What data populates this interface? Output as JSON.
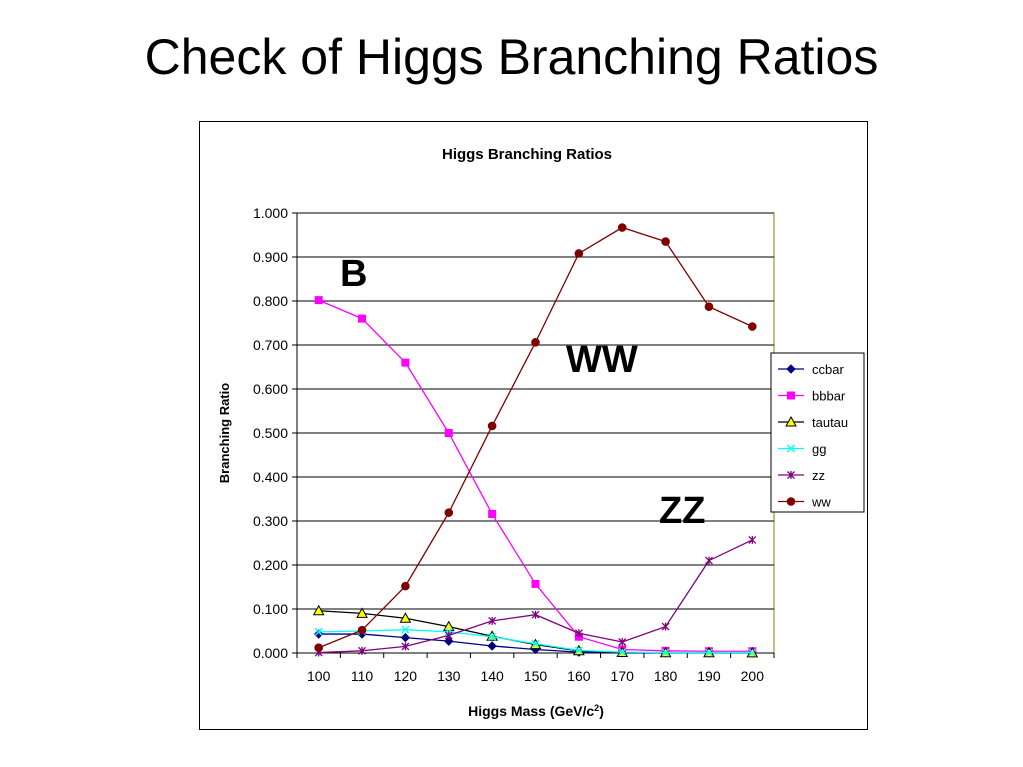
{
  "slide": {
    "title": "Check of Higgs Branching Ratios"
  },
  "chart_data": {
    "type": "line",
    "title": "Higgs Branching Ratios",
    "xlabel": "Higgs Mass (GeV/c",
    "xlabel_sup": "2",
    "xlabel_close": ")",
    "ylabel": "Branching Ratio",
    "x": [
      100,
      110,
      120,
      130,
      140,
      150,
      160,
      170,
      180,
      190,
      200
    ],
    "ylim": [
      0,
      1
    ],
    "yticks": [
      "0.000",
      "0.100",
      "0.200",
      "0.300",
      "0.400",
      "0.500",
      "0.600",
      "0.700",
      "0.800",
      "0.900",
      "1.000"
    ],
    "grid": true,
    "legend_position": "right",
    "series": [
      {
        "name": "ccbar",
        "color": "#000080",
        "marker": "diamond",
        "values": [
          0.043,
          0.043,
          0.035,
          0.027,
          0.016,
          0.008,
          0.002,
          0.0005,
          0.0003,
          0.0002,
          0.0002
        ]
      },
      {
        "name": "bbbar",
        "color": "#ff00ff",
        "marker": "square",
        "values": [
          0.802,
          0.76,
          0.66,
          0.5,
          0.316,
          0.157,
          0.037,
          0.008,
          0.005,
          0.004,
          0.004
        ]
      },
      {
        "name": "tautau",
        "color": "#000000",
        "marker": "triangle",
        "values": [
          0.096,
          0.09,
          0.079,
          0.06,
          0.038,
          0.019,
          0.005,
          0.001,
          0.0007,
          0.0005,
          0.0004
        ]
      },
      {
        "name": "gg",
        "color": "#00ffff",
        "marker": "x",
        "values": [
          0.048,
          0.05,
          0.053,
          0.048,
          0.037,
          0.021,
          0.006,
          0.002,
          0.001,
          0.001,
          0.001
        ]
      },
      {
        "name": "zz",
        "color": "#800080",
        "marker": "star",
        "values": [
          0.001,
          0.005,
          0.015,
          0.04,
          0.073,
          0.087,
          0.045,
          0.025,
          0.06,
          0.21,
          0.257
        ]
      },
      {
        "name": "ww",
        "color": "#800000",
        "marker": "circle",
        "values": [
          0.012,
          0.052,
          0.152,
          0.319,
          0.516,
          0.706,
          0.908,
          0.967,
          0.935,
          0.787,
          0.742
        ]
      }
    ],
    "annotations": [
      {
        "text": "B"
      },
      {
        "text": "WW"
      },
      {
        "text": "ZZ"
      }
    ]
  }
}
